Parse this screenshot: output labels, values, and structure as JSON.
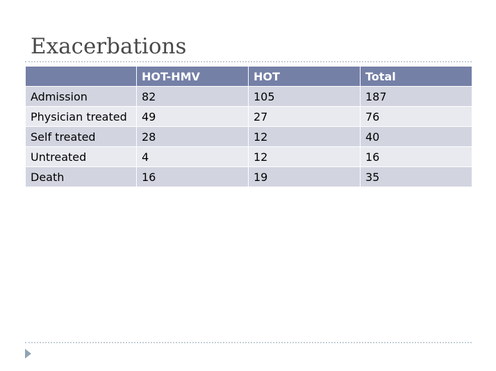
{
  "slide": {
    "title": "Exacerbations"
  },
  "table": {
    "headers": [
      "",
      "HOT-HMV",
      "HOT",
      "Total"
    ],
    "rows": [
      [
        "Admission",
        "82",
        "105",
        "187"
      ],
      [
        "Physician treated",
        "49",
        "27",
        "76"
      ],
      [
        "Self treated",
        "28",
        "12",
        "40"
      ],
      [
        "Untreated",
        "4",
        "12",
        "16"
      ],
      [
        "Death",
        "16",
        "19",
        "35"
      ]
    ]
  },
  "colors": {
    "header_bg": "#7580a7",
    "row_odd_bg": "#d2d5e0",
    "row_even_bg": "#e9eaf0",
    "rule": "#c4cfd7",
    "nav_arrow": "#8fa4b4"
  },
  "icons": {
    "nav": "triangle-right-icon"
  }
}
